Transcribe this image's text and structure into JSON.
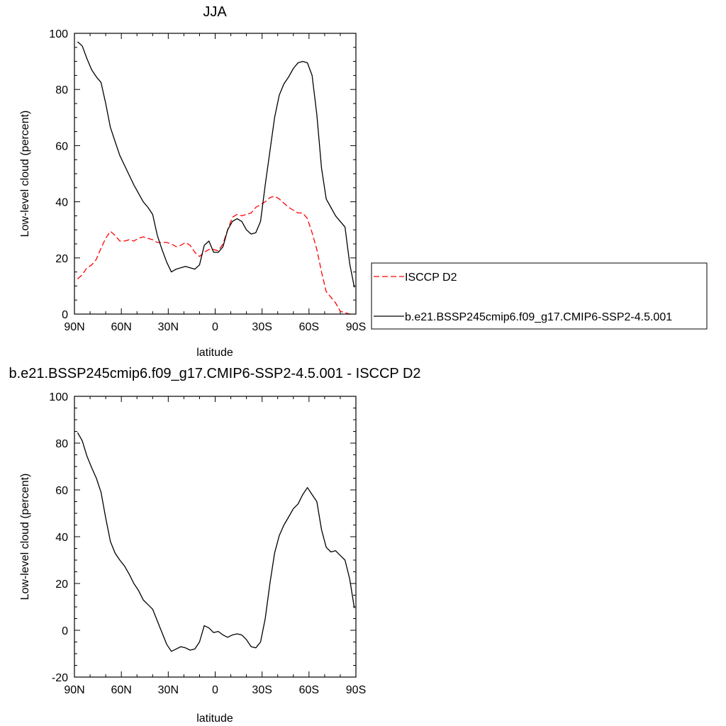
{
  "chart_data": [
    {
      "type": "line",
      "title": "JJA",
      "xlabel": "latitude",
      "ylabel": "Low-level cloud (percent)",
      "xlim": [
        -90,
        90
      ],
      "ylim": [
        0,
        100
      ],
      "x_tick_values": [
        -90,
        -60,
        -30,
        0,
        30,
        60,
        90
      ],
      "x_tick_labels": [
        "90N",
        "60N",
        "30N",
        "0",
        "30S",
        "60S",
        "90S"
      ],
      "y_ticks": [
        0,
        20,
        40,
        60,
        80,
        100
      ],
      "legend_position": "right",
      "series": [
        {
          "name": "ISCCP D2",
          "color": "#ff0000",
          "dash": "dashed",
          "x": [
            -88,
            -85,
            -82,
            -79,
            -76,
            -73,
            -70,
            -67,
            -64,
            -61,
            -58,
            -55,
            -52,
            -49,
            -46,
            -43,
            -40,
            -37,
            -34,
            -31,
            -28,
            -25,
            -22,
            -19,
            -16,
            -13,
            -10,
            -7,
            -4,
            -1,
            2,
            5,
            8,
            11,
            14,
            17,
            20,
            23,
            26,
            29,
            32,
            35,
            38,
            41,
            44,
            47,
            50,
            53,
            56,
            59,
            62,
            65,
            68,
            71,
            74,
            77,
            80,
            83,
            86,
            89
          ],
          "values": [
            12.5,
            14,
            16.5,
            17.5,
            19.5,
            23.5,
            27,
            29.5,
            28,
            26,
            26,
            26.5,
            26,
            27,
            27.5,
            27,
            26.5,
            25.5,
            25.5,
            25.5,
            25,
            24,
            24.5,
            25.5,
            24.5,
            22,
            20.5,
            22,
            23,
            23,
            22.5,
            25,
            30,
            34.5,
            35.5,
            35,
            35.5,
            36,
            38,
            39,
            40,
            41.5,
            42,
            41,
            39.5,
            38,
            37,
            36,
            36,
            34,
            29,
            23,
            15,
            8,
            6,
            4,
            1,
            0.5,
            0,
            0
          ]
        },
        {
          "name": "b.e21.BSSP245cmip6.f09_g17.CMIP6-SSP2-4.5.001",
          "color": "#000000",
          "dash": "solid",
          "x": [
            -88,
            -85,
            -82,
            -79,
            -76,
            -73,
            -70,
            -67,
            -64,
            -61,
            -58,
            -55,
            -52,
            -49,
            -46,
            -43,
            -40,
            -37,
            -34,
            -31,
            -28,
            -25,
            -22,
            -19,
            -16,
            -13,
            -10,
            -7,
            -4,
            -1,
            2,
            5,
            8,
            11,
            14,
            17,
            20,
            23,
            26,
            29,
            32,
            35,
            38,
            41,
            44,
            47,
            50,
            53,
            56,
            59,
            62,
            65,
            68,
            71,
            74,
            77,
            80,
            83,
            86,
            89
          ],
          "values": [
            97,
            95.5,
            91,
            87,
            84.5,
            82.5,
            75,
            66.5,
            61.5,
            56.5,
            53,
            49.5,
            46,
            43,
            40,
            38,
            35.5,
            28,
            23,
            18.5,
            15,
            16,
            16.5,
            17,
            16.5,
            16,
            17.5,
            24.5,
            26,
            22,
            22,
            24,
            30,
            33,
            34,
            33,
            30,
            28.5,
            29,
            33,
            46,
            58,
            70,
            78,
            82,
            84.5,
            87.5,
            89.5,
            90,
            89.5,
            85,
            71,
            52,
            41,
            38,
            35,
            33,
            31,
            18,
            9.5
          ]
        }
      ]
    },
    {
      "type": "line",
      "title": "b.e21.BSSP245cmip6.f09_g17.CMIP6-SSP2-4.5.001 - ISCCP D2",
      "xlabel": "latitude",
      "ylabel": "Low-level cloud (percent)",
      "xlim": [
        -90,
        90
      ],
      "ylim": [
        -20,
        100
      ],
      "x_tick_values": [
        -90,
        -60,
        -30,
        0,
        30,
        60,
        90
      ],
      "x_tick_labels": [
        "90N",
        "60N",
        "30N",
        "0",
        "30S",
        "60S",
        "90S"
      ],
      "y_ticks": [
        -20,
        0,
        20,
        40,
        60,
        80,
        100
      ],
      "series": [
        {
          "color": "#000000",
          "dash": "solid",
          "x": [
            -88,
            -85,
            -82,
            -79,
            -76,
            -73,
            -70,
            -67,
            -64,
            -61,
            -58,
            -55,
            -52,
            -49,
            -46,
            -43,
            -40,
            -37,
            -34,
            -31,
            -28,
            -25,
            -22,
            -19,
            -16,
            -13,
            -10,
            -7,
            -4,
            -1,
            2,
            5,
            8,
            11,
            14,
            17,
            20,
            23,
            26,
            29,
            32,
            35,
            38,
            41,
            44,
            47,
            50,
            53,
            56,
            59,
            62,
            65,
            68,
            71,
            74,
            77,
            80,
            83,
            86,
            89
          ],
          "values": [
            84.5,
            81,
            74.5,
            69.5,
            65,
            59,
            48,
            38,
            33,
            30,
            27.5,
            24,
            20,
            17,
            13,
            11,
            9,
            4,
            -1,
            -6,
            -9,
            -8,
            -7,
            -7.5,
            -8.5,
            -8,
            -5,
            2,
            1,
            -1,
            -0.5,
            -2,
            -3,
            -2,
            -1.5,
            -2,
            -4,
            -7,
            -7.5,
            -5,
            5,
            20,
            33,
            40.5,
            45,
            48.5,
            52,
            54,
            58,
            61,
            58,
            55,
            43,
            35.5,
            33.5,
            34,
            32,
            30,
            22,
            9.5
          ]
        }
      ]
    }
  ]
}
